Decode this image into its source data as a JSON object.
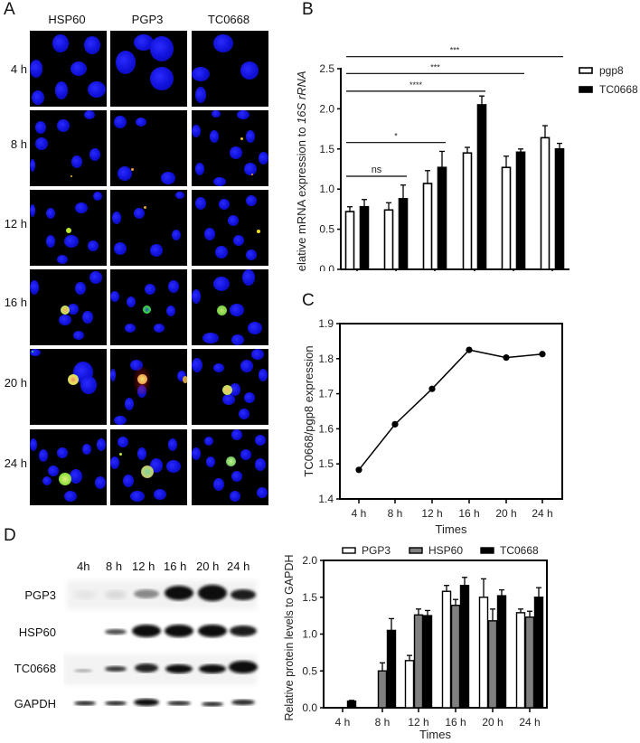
{
  "figure": {
    "panels": {
      "A": "A",
      "B": "B",
      "C": "C",
      "D": "D"
    }
  },
  "panel_a": {
    "columns": [
      "HSP60",
      "PGP3",
      "TC0668"
    ],
    "rows": [
      "4 h",
      "8 h",
      "12 h",
      "16 h",
      "20 h",
      "24 h"
    ],
    "stain_colors": {
      "nucleus": "#1a1aff",
      "green": "#7cff3a",
      "red": "#ff2a2a",
      "merge": "#f5d060"
    }
  },
  "panel_d_blot": {
    "lanes": [
      "4h",
      "8 h",
      "12 h",
      "16 h",
      "20 h",
      "24 h"
    ],
    "proteins": [
      "PGP3",
      "HSP60",
      "TC0668",
      "GAPDH"
    ]
  },
  "chart_data": [
    {
      "id": "B",
      "type": "bar",
      "title": "",
      "xlabel": "Times",
      "ylabel": "Relative mRNA expression to 16S rRNA",
      "ylim": [
        0,
        2.5
      ],
      "yticks": [
        "0.0",
        "0.5",
        "1.0",
        "1.5",
        "2.0",
        "2.5"
      ],
      "categories": [
        "4 h",
        "8 h",
        "12 h",
        "16 h",
        "20 h",
        "24 h"
      ],
      "legend": {
        "position": "right",
        "entries": [
          "pgp8",
          "TC0668"
        ]
      },
      "series": [
        {
          "name": "pgp8",
          "fill": "#ffffff",
          "values": [
            0.72,
            0.74,
            1.07,
            1.45,
            1.27,
            1.64
          ],
          "errors": [
            0.06,
            0.09,
            0.16,
            0.07,
            0.14,
            0.15
          ]
        },
        {
          "name": "TC0668",
          "fill": "#000000",
          "values": [
            0.78,
            0.88,
            1.27,
            2.05,
            1.46,
            1.5
          ],
          "errors": [
            0.09,
            0.17,
            0.2,
            0.11,
            0.04,
            0.07
          ]
        }
      ],
      "significance": [
        {
          "from": "4 h",
          "to": "8 h",
          "label": "ns",
          "y": 1.16
        },
        {
          "from": "4 h",
          "to": "12 h",
          "label": "*",
          "y": 1.58
        },
        {
          "from": "4 h",
          "to": "16 h",
          "label": "****",
          "y": 2.22
        },
        {
          "from": "4 h",
          "to": "20 h",
          "label": "***",
          "y": 2.44
        },
        {
          "from": "4 h",
          "to": "24 h",
          "label": "***",
          "y": 2.65
        }
      ],
      "grid": false
    },
    {
      "id": "C",
      "type": "line",
      "title": "",
      "xlabel": "Times",
      "ylabel": "TC0668/pgp8 expression",
      "ylim": [
        1.4,
        1.9
      ],
      "yticks": [
        "1.4",
        "1.5",
        "1.6",
        "1.7",
        "1.8",
        "1.9"
      ],
      "categories": [
        "4 h",
        "8 h",
        "12 h",
        "16 h",
        "20 h",
        "24 h"
      ],
      "series": [
        {
          "name": "TC0668/pgp8",
          "values": [
            1.483,
            1.613,
            1.714,
            1.825,
            1.803,
            1.813
          ]
        }
      ],
      "grid": false
    },
    {
      "id": "D",
      "type": "bar",
      "title": "",
      "xlabel": "Times",
      "ylabel": "Relative protein levels to GAPDH",
      "ylim": [
        0,
        2.0
      ],
      "yticks": [
        "0.0",
        "0.5",
        "1.0",
        "1.5",
        "2.0"
      ],
      "categories": [
        "4 h",
        "8 h",
        "12 h",
        "16 h",
        "20 h",
        "24 h"
      ],
      "legend": {
        "position": "top",
        "entries": [
          "PGP3",
          "HSP60",
          "TC0668"
        ]
      },
      "series": [
        {
          "name": "PGP3",
          "fill": "#ffffff",
          "values": [
            0,
            0,
            0.64,
            1.58,
            1.5,
            1.29
          ],
          "errors": [
            0,
            0,
            0.07,
            0.08,
            0.25,
            0.05
          ]
        },
        {
          "name": "HSP60",
          "fill": "#808080",
          "values": [
            0,
            0.5,
            1.26,
            1.39,
            1.18,
            1.23
          ],
          "errors": [
            0,
            0.11,
            0.08,
            0.08,
            0.16,
            0.08
          ]
        },
        {
          "name": "TC0668",
          "fill": "#000000",
          "values": [
            0.09,
            1.05,
            1.25,
            1.66,
            1.52,
            1.5
          ],
          "errors": [
            0.01,
            0.16,
            0.07,
            0.11,
            0.08,
            0.13
          ]
        }
      ],
      "grid": false
    }
  ]
}
